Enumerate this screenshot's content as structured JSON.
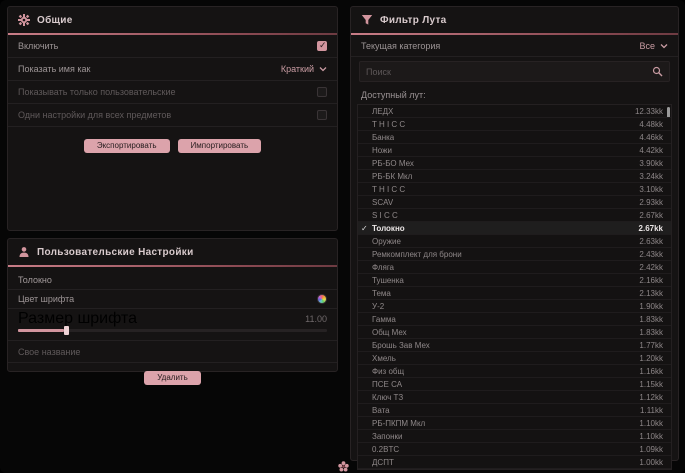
{
  "colors": {
    "accent": "#d2959e",
    "accent_strong": "#b05a64",
    "button_bg": "#dca3ab",
    "panel_bg": "#151313",
    "selected_text": "#eae5e5"
  },
  "general": {
    "title": "Общие",
    "icon": "gear-icon",
    "rows": [
      {
        "label": "Включить",
        "control": "checkbox",
        "checked": true
      },
      {
        "label": "Показать имя как",
        "control": "dropdown",
        "value": "Краткий"
      },
      {
        "label": "Показывать только пользовательские",
        "control": "checkbox",
        "checked": false
      },
      {
        "label": "Одни настройки для всех предметов",
        "control": "checkbox",
        "checked": false
      }
    ],
    "export_label": "Экспортировать",
    "import_label": "Импортировать"
  },
  "custom": {
    "title": "Пользовательские Настройки",
    "icon": "user-settings-icon",
    "item_name": "Толокно",
    "font_color_label": "Цвет шрифта",
    "font_size_label": "Размер шрифта",
    "font_size_value": "11.00",
    "font_size_fill_percent": 15,
    "custom_name_label": "Свое название",
    "delete_label": "Удалить"
  },
  "filter": {
    "title": "Фильтр Лута",
    "icon": "funnel-icon",
    "category_label": "Текущая категория",
    "category_value": "Все",
    "search_placeholder": "Поиск",
    "list_label": "Доступный лут:",
    "items": [
      {
        "name": "ЛЕДХ",
        "value": "12.33kk",
        "checked": false
      },
      {
        "name": "T H I C C",
        "value": "4.48kk",
        "checked": false
      },
      {
        "name": "Банка",
        "value": "4.46kk",
        "checked": false
      },
      {
        "name": "Ножи",
        "value": "4.42kk",
        "checked": false
      },
      {
        "name": "РБ-БО Мех",
        "value": "3.90kk",
        "checked": false
      },
      {
        "name": "РБ-БК Мкл",
        "value": "3.24kk",
        "checked": false
      },
      {
        "name": "T H I C C",
        "value": "3.10kk",
        "checked": false
      },
      {
        "name": "SCAV",
        "value": "2.93kk",
        "checked": false
      },
      {
        "name": "S I C C",
        "value": "2.67kk",
        "checked": false
      },
      {
        "name": "Толокно",
        "value": "2.67kk",
        "checked": true
      },
      {
        "name": "Оружие",
        "value": "2.63kk",
        "checked": false
      },
      {
        "name": "Ремкомплект для брони",
        "value": "2.43kk",
        "checked": false
      },
      {
        "name": "Фляга",
        "value": "2.42kk",
        "checked": false
      },
      {
        "name": "Тушенка",
        "value": "2.16kk",
        "checked": false
      },
      {
        "name": "Тема",
        "value": "2.13kk",
        "checked": false
      },
      {
        "name": "У-2",
        "value": "1.90kk",
        "checked": false
      },
      {
        "name": "Гамма",
        "value": "1.83kk",
        "checked": false
      },
      {
        "name": "Общ Мех",
        "value": "1.83kk",
        "checked": false
      },
      {
        "name": "Брошь Зав Мех",
        "value": "1.77kk",
        "checked": false
      },
      {
        "name": "Хмель",
        "value": "1.20kk",
        "checked": false
      },
      {
        "name": "Физ общ",
        "value": "1.16kk",
        "checked": false
      },
      {
        "name": "ПСЕ СА",
        "value": "1.15kk",
        "checked": false
      },
      {
        "name": "Ключ ТЗ",
        "value": "1.12kk",
        "checked": false
      },
      {
        "name": "Вата",
        "value": "1.11kk",
        "checked": false
      },
      {
        "name": "РБ-ПКПМ Мкл",
        "value": "1.10kk",
        "checked": false
      },
      {
        "name": "Запонки",
        "value": "1.10kk",
        "checked": false
      },
      {
        "name": "0.2BTC",
        "value": "1.09kk",
        "checked": false
      },
      {
        "name": "ДСПТ",
        "value": "1.00kk",
        "checked": false
      }
    ]
  }
}
